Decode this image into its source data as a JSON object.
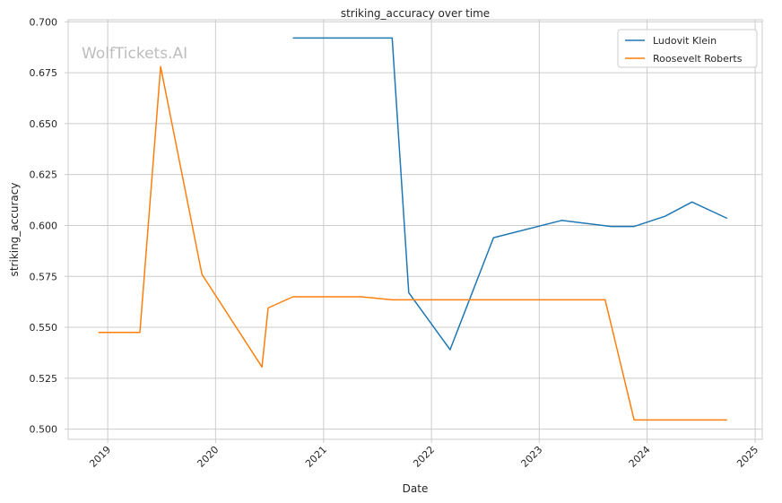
{
  "chart_data": {
    "type": "line",
    "title": "striking_accuracy over time",
    "xlabel": "Date",
    "ylabel": "striking_accuracy",
    "watermark": "WolfTickets.AI",
    "grid": true,
    "legend_position": "top-right",
    "x_ticks": [
      "2019",
      "2020",
      "2021",
      "2022",
      "2023",
      "2024",
      "2025"
    ],
    "y_ticks": [
      "0.500",
      "0.525",
      "0.550",
      "0.575",
      "0.600",
      "0.625",
      "0.650",
      "0.675",
      "0.700"
    ],
    "xlim": [
      "2018-08-20",
      "2025-01-25"
    ],
    "ylim": [
      0.495,
      0.701
    ],
    "series": [
      {
        "name": "Ludovit Klein",
        "color": "#1f77b4",
        "points": [
          {
            "x": "2020-09-19",
            "y": 0.692
          },
          {
            "x": "2021-08-21",
            "y": 0.692
          },
          {
            "x": "2021-10-16",
            "y": 0.567
          },
          {
            "x": "2022-03-05",
            "y": 0.539
          },
          {
            "x": "2022-07-30",
            "y": 0.594
          },
          {
            "x": "2023-03-18",
            "y": 0.6025
          },
          {
            "x": "2023-09-02",
            "y": 0.5995
          },
          {
            "x": "2023-11-18",
            "y": 0.5995
          },
          {
            "x": "2024-03-02",
            "y": 0.6045
          },
          {
            "x": "2024-06-01",
            "y": 0.6115
          },
          {
            "x": "2024-09-28",
            "y": 0.6035
          }
        ]
      },
      {
        "name": "Roosevelt Roberts",
        "color": "#ff7f0e",
        "points": [
          {
            "x": "2018-11-30",
            "y": 0.5475
          },
          {
            "x": "2019-04-20",
            "y": 0.5475
          },
          {
            "x": "2019-06-29",
            "y": 0.678
          },
          {
            "x": "2019-11-16",
            "y": 0.576
          },
          {
            "x": "2020-06-06",
            "y": 0.5305
          },
          {
            "x": "2020-06-27",
            "y": 0.5595
          },
          {
            "x": "2020-09-19",
            "y": 0.565
          },
          {
            "x": "2021-05-08",
            "y": 0.565
          },
          {
            "x": "2021-08-21",
            "y": 0.5635
          },
          {
            "x": "2023-08-12",
            "y": 0.5635
          },
          {
            "x": "2023-11-18",
            "y": 0.5045
          },
          {
            "x": "2024-09-28",
            "y": 0.5045
          }
        ]
      }
    ]
  }
}
